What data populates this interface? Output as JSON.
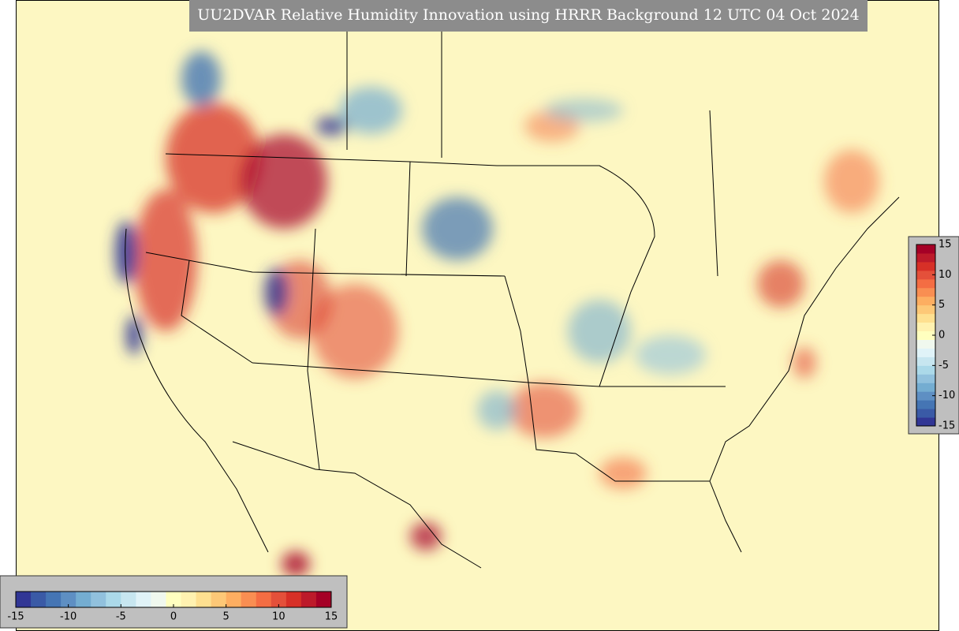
{
  "title": "UU2DVAR Relative Humidity Innovation using HRRR Background 12 UTC 04 Oct 2024",
  "colorbar": {
    "range": [
      -15,
      15
    ],
    "ticks": [
      -15,
      -10,
      -5,
      0,
      5,
      10,
      15
    ],
    "colors": [
      "#313695",
      "#3a5aa6",
      "#4575b4",
      "#5e8fc3",
      "#74add1",
      "#91c1dd",
      "#abd9e9",
      "#c7e6f0",
      "#e0f3f8",
      "#f0f8ee",
      "#ffffbf",
      "#fff2b0",
      "#fee090",
      "#fdc877",
      "#fdae61",
      "#f98e52",
      "#f46d43",
      "#e4503a",
      "#d73027",
      "#bd1a2a",
      "#a50026"
    ]
  }
}
